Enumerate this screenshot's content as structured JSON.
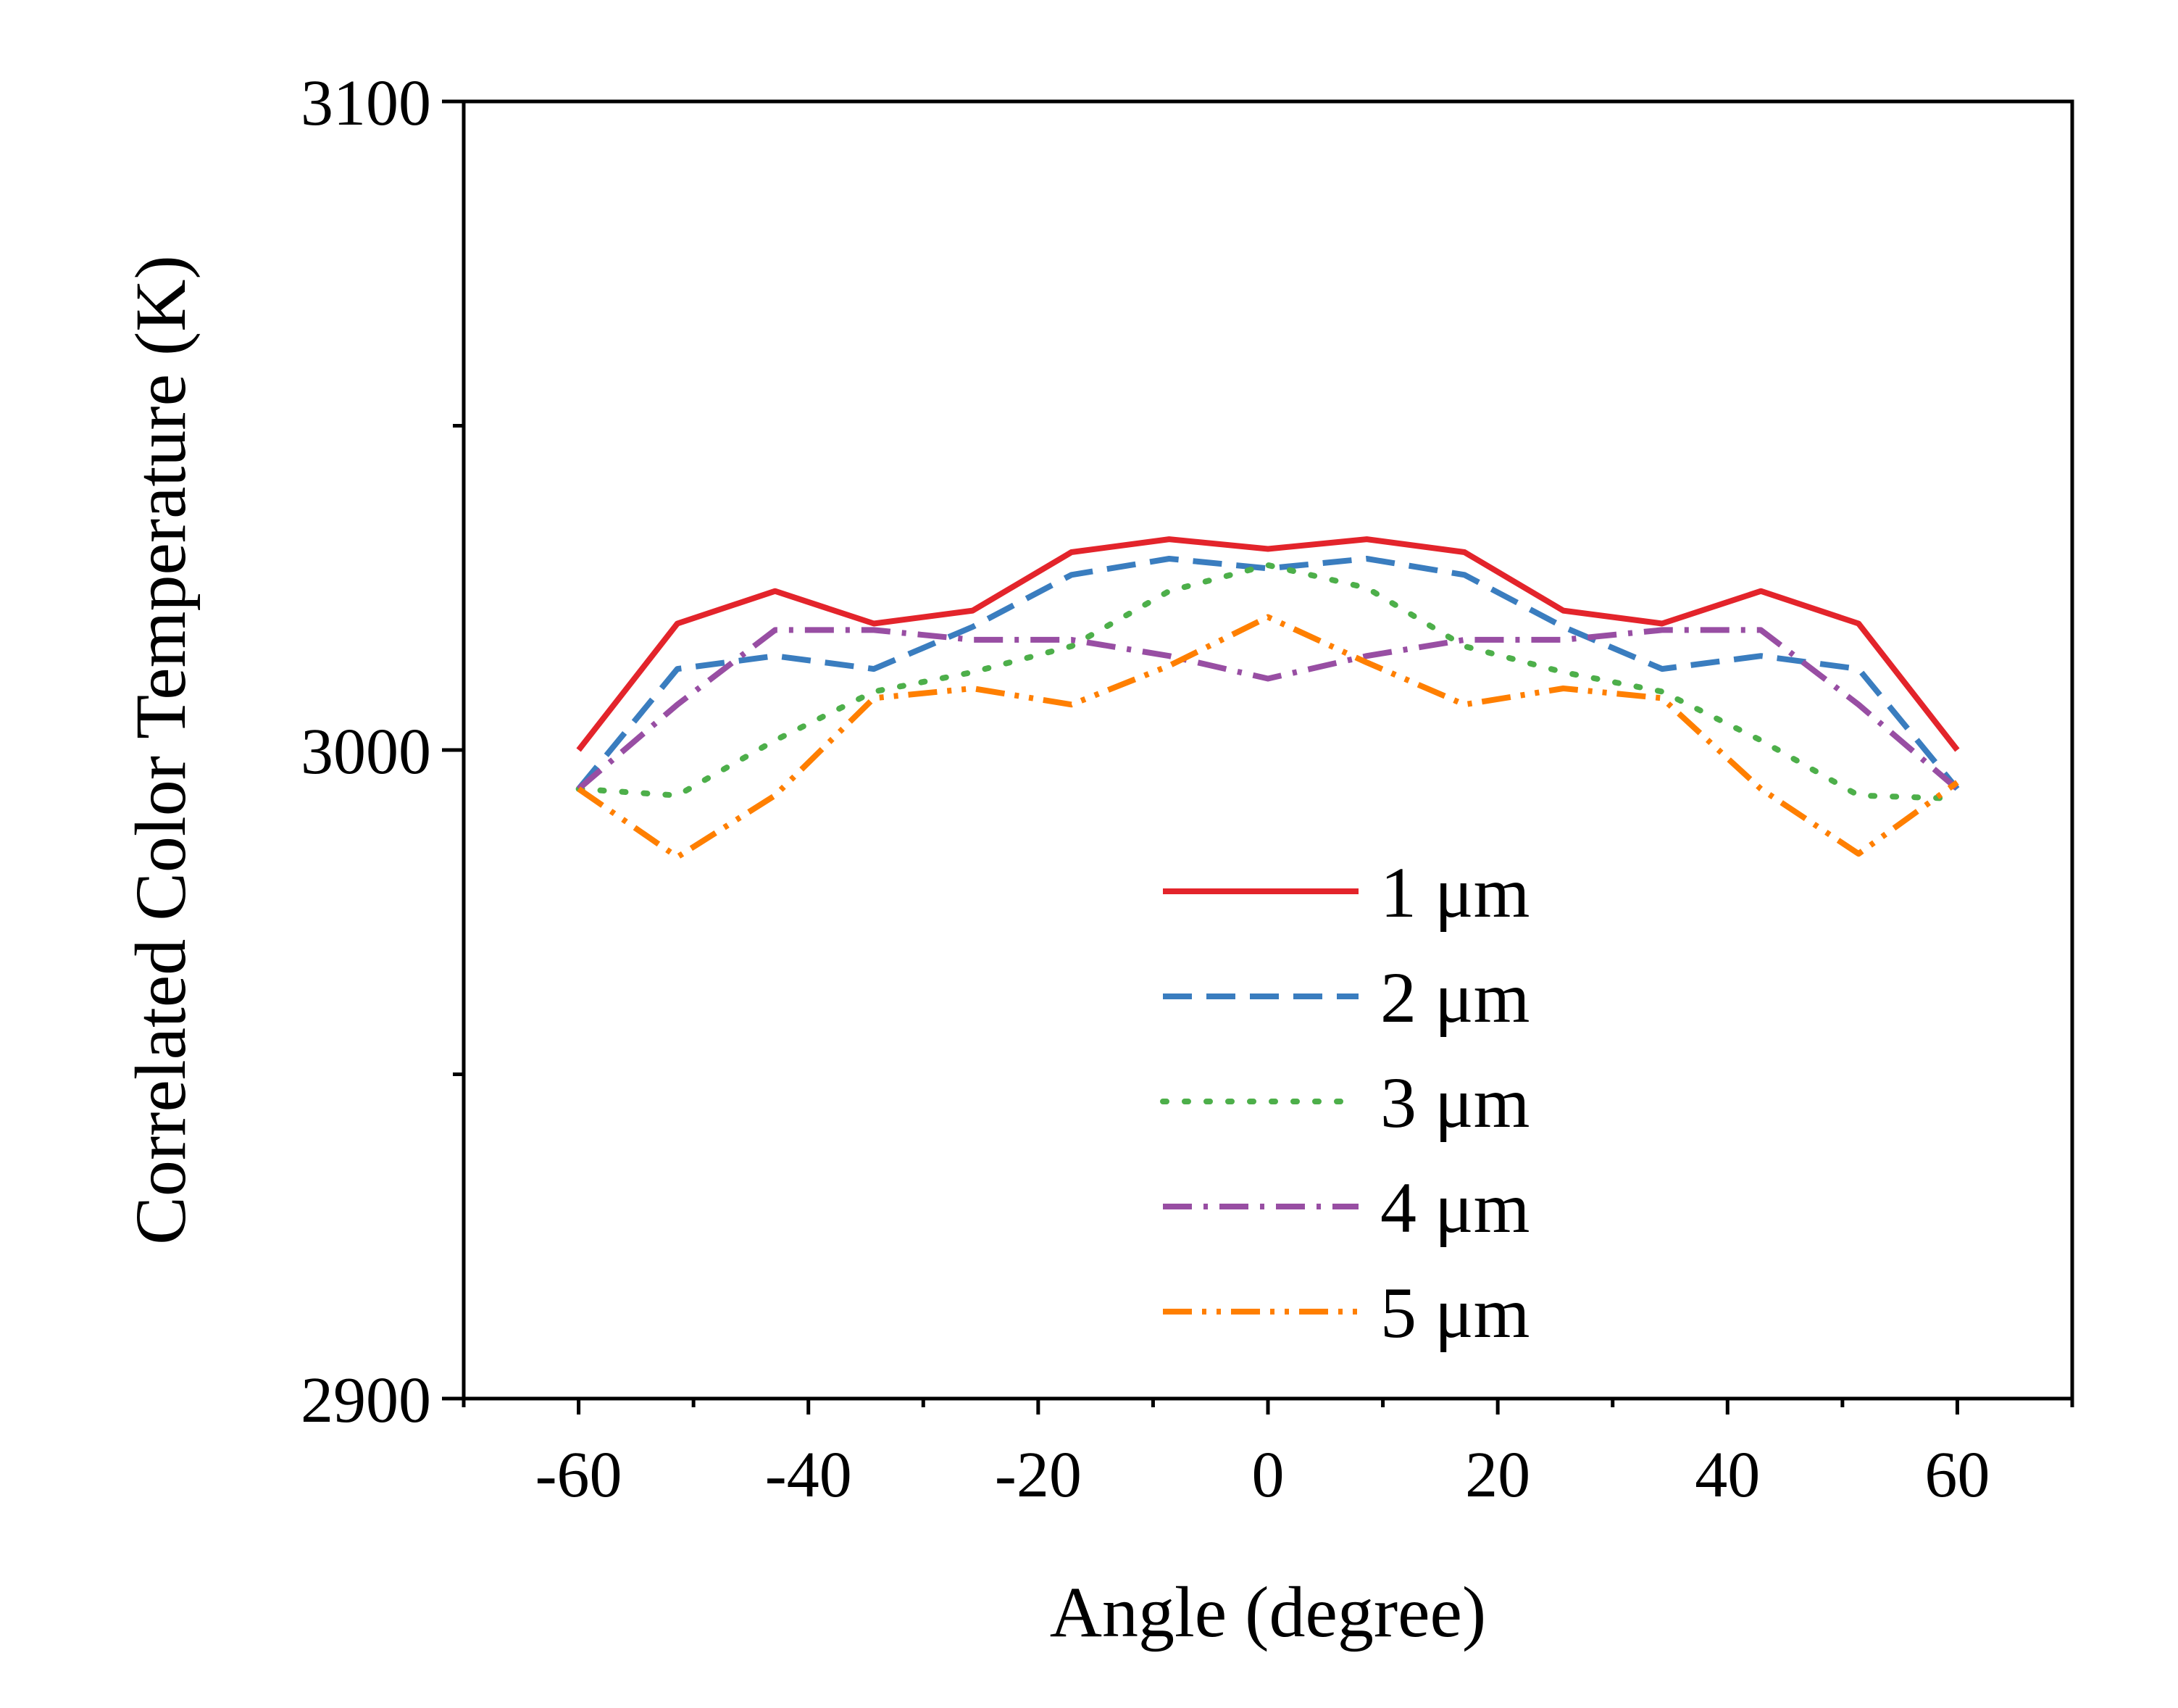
{
  "chart_data": {
    "type": "line",
    "title": "",
    "xlabel": "Angle (degree)",
    "ylabel": "Correlated Color Temperature (K)",
    "xlim": [
      -70,
      70
    ],
    "ylim": [
      2900,
      3100
    ],
    "x_ticks": [
      -60,
      -40,
      -20,
      0,
      20,
      40,
      60
    ],
    "x_tick_labels": [
      "-60",
      "-40",
      "-20",
      "0",
      "20",
      "40",
      "60"
    ],
    "y_ticks": [
      2900,
      3000,
      3100
    ],
    "y_tick_labels": [
      "2900",
      "3000",
      "3100"
    ],
    "grid": false,
    "legend_position": "bottom-center",
    "x": [
      -60,
      -51.4,
      -42.9,
      -34.3,
      -25.7,
      -17.1,
      -8.6,
      0,
      8.6,
      17.1,
      25.7,
      34.3,
      42.9,
      51.4,
      60
    ],
    "series": [
      {
        "name": "1 μm",
        "color": "#e3242b",
        "dash": "solid",
        "values": [
          3000,
          3019.5,
          3024.5,
          3019.5,
          3021.5,
          3030.5,
          3032.5,
          3031,
          3032.5,
          3030.5,
          3021.5,
          3019.5,
          3024.5,
          3019.5,
          3000
        ]
      },
      {
        "name": "2 μm",
        "color": "#3a7dbf",
        "dash": "dash",
        "values": [
          2994,
          3012.5,
          3014.5,
          3012.5,
          3019,
          3027,
          3029.5,
          3028,
          3029.5,
          3027,
          3019,
          3012.5,
          3014.5,
          3012.5,
          2994
        ]
      },
      {
        "name": "3 μm",
        "color": "#4daf4a",
        "dash": "dot",
        "values": [
          2994,
          2993,
          3001.5,
          3009,
          3012,
          3016,
          3024.5,
          3028.5,
          3025,
          3016,
          3012,
          3009,
          3001.5,
          2993,
          2992.5
        ]
      },
      {
        "name": "4 μm",
        "color": "#984ea3",
        "dash": "dashdot",
        "values": [
          2994,
          3007,
          3018.5,
          3018.5,
          3017,
          3017,
          3014.5,
          3011,
          3014.5,
          3017,
          3017,
          3018.5,
          3018.5,
          3007,
          2994
        ]
      },
      {
        "name": "5 μm",
        "color": "#ff7f00",
        "dash": "dashdotdot",
        "values": [
          2994,
          2983.5,
          2993,
          3008,
          3009.5,
          3007,
          3013,
          3020.5,
          3013.5,
          3007,
          3009.5,
          3008,
          2994,
          2984,
          2995
        ]
      }
    ]
  }
}
